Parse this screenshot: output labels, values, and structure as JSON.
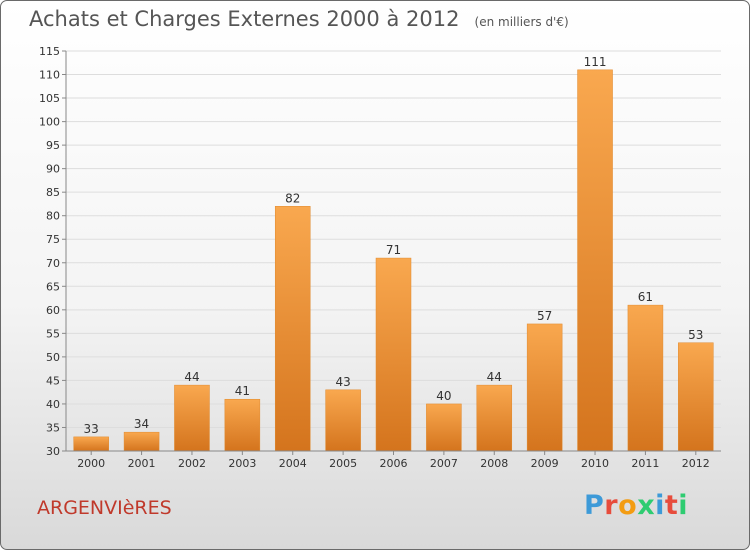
{
  "title": "Achats et Charges Externes 2000 à 2012",
  "unit_note": "(en milliers d'€)",
  "city": "ARGENVIèRES",
  "logo": {
    "text": "Proxiti",
    "letter_colors": [
      "#3d9ad8",
      "#e74c3c",
      "#f39c12",
      "#2ecc71",
      "#3d9ad8",
      "#e74c3c",
      "#2ecc71"
    ]
  },
  "colors": {
    "bar_light": "#f9a84f",
    "bar_dark": "#d4741d",
    "axis_text": "#333333",
    "grid": "#dddddd"
  },
  "chart_data": {
    "type": "bar",
    "categories": [
      "2000",
      "2001",
      "2002",
      "2003",
      "2004",
      "2005",
      "2006",
      "2007",
      "2008",
      "2009",
      "2010",
      "2011",
      "2012"
    ],
    "values": [
      33,
      34,
      44,
      41,
      82,
      43,
      71,
      40,
      44,
      57,
      111,
      61,
      53
    ],
    "ylim": [
      30,
      115
    ],
    "yticks": [
      30,
      35,
      40,
      45,
      50,
      55,
      60,
      65,
      70,
      75,
      80,
      85,
      90,
      95,
      100,
      105,
      110,
      115
    ],
    "grid": true,
    "title": "Achats et Charges Externes 2000 à 2012",
    "xlabel": "",
    "ylabel": ""
  }
}
